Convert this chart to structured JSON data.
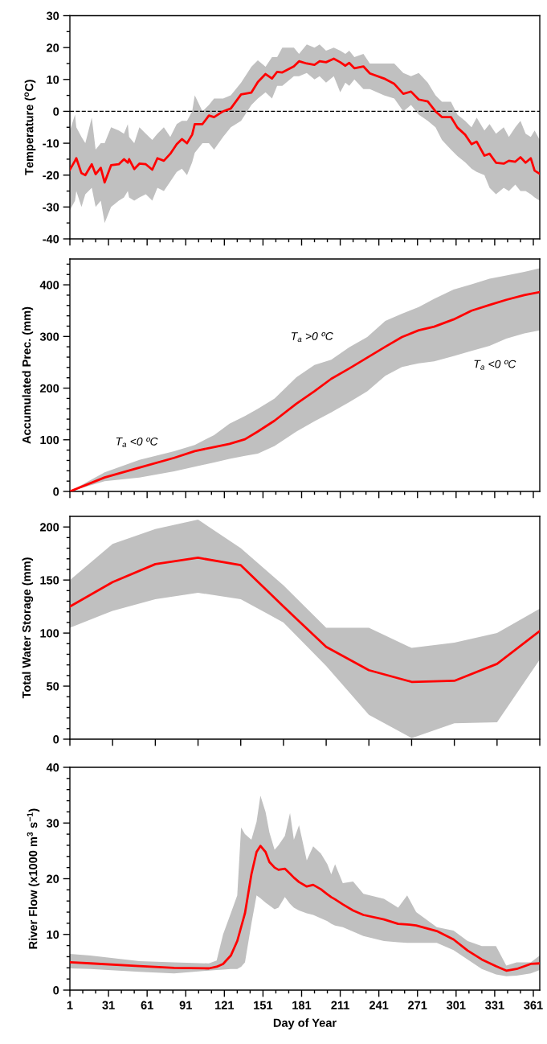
{
  "chart_data": [
    {
      "type": "line",
      "ylabel": "Temperature ($^{o}$C)",
      "xlim": [
        1,
        366
      ],
      "ylim": [
        -40,
        30
      ],
      "tick_labels": "y",
      "xticks": [
        1,
        {
          "value": 11,
          "label": null
        },
        {
          "value": 21,
          "label": null
        },
        31,
        {
          "value": 41,
          "label": null
        },
        {
          "value": 51,
          "label": null
        },
        61,
        {
          "value": 71,
          "label": null
        },
        {
          "value": 81,
          "label": null
        },
        91,
        {
          "value": 101,
          "label": null
        },
        {
          "value": 111,
          "label": null
        },
        121,
        {
          "value": 131,
          "label": null
        },
        {
          "value": 141,
          "label": null
        },
        151,
        {
          "value": 161,
          "label": null
        },
        {
          "value": 171,
          "label": null
        },
        181,
        {
          "value": 191,
          "label": null
        },
        {
          "value": 201,
          "label": null
        },
        211,
        {
          "value": 221,
          "label": null
        },
        {
          "value": 231,
          "label": null
        },
        241,
        {
          "value": 251,
          "label": null
        },
        {
          "value": 261,
          "label": null
        },
        271,
        {
          "value": 281,
          "label": null
        },
        {
          "value": 291,
          "label": null
        },
        301,
        {
          "value": 311,
          "label": null
        },
        {
          "value": 321,
          "label": null
        },
        331,
        {
          "value": 341,
          "label": null
        },
        {
          "value": 351,
          "label": null
        },
        361
      ],
      "yticks": [
        -40,
        {
          "value": -35,
          "label": null
        },
        -30,
        {
          "value": -25,
          "label": null
        },
        -20,
        {
          "value": -15,
          "label": null
        },
        -10,
        {
          "value": -5,
          "label": null
        },
        0,
        {
          "value": 5,
          "label": null
        },
        10,
        {
          "value": 15,
          "label": null
        },
        20,
        {
          "value": 25,
          "label": null
        },
        30
      ],
      "ref_lines": [
        {
          "axis": "y",
          "value": 0,
          "color": "#000000",
          "line_style": "dashed"
        }
      ],
      "series": [
        {
          "color": "#ff0000",
          "x": [
            1,
            5,
            6,
            10,
            13,
            18,
            21,
            25,
            28,
            33,
            39,
            43,
            46,
            47,
            51,
            55,
            60,
            65,
            69,
            74,
            79,
            84,
            88,
            92,
            96,
            98,
            104,
            109,
            113,
            120,
            126,
            134,
            142,
            147,
            153,
            158,
            162,
            166,
            175,
            179,
            185,
            191,
            195,
            200,
            206,
            211,
            215,
            218,
            222,
            229,
            234,
            245,
            253,
            260,
            266,
            272,
            279,
            285,
            290,
            297,
            302,
            308,
            313,
            317,
            323,
            327,
            332,
            338,
            342,
            347,
            351,
            355,
            359,
            362,
            366
          ],
          "values": [
            -18.3,
            -15.5,
            -14.7,
            -19.4,
            -20,
            -16.6,
            -19.7,
            -17.7,
            -22.3,
            -16.9,
            -16.6,
            -15,
            -16.1,
            -15,
            -18.1,
            -16.4,
            -16.6,
            -18.3,
            -14.7,
            -15.5,
            -13.3,
            -10.3,
            -8.7,
            -10,
            -7.3,
            -4,
            -4,
            -1.3,
            -1.8,
            0,
            0.9,
            5.3,
            5.9,
            9.2,
            11.7,
            10.3,
            12.4,
            12.2,
            14.1,
            15.7,
            15,
            14.6,
            15.7,
            15.4,
            16.5,
            15.4,
            14.3,
            15.2,
            13.5,
            14.1,
            11.9,
            10.3,
            8.6,
            5.5,
            6.2,
            3.7,
            3.1,
            0,
            -1.8,
            -1.8,
            -5.1,
            -7.3,
            -10.3,
            -9.5,
            -13.9,
            -13.3,
            -16.1,
            -16.4,
            -15.5,
            -15.8,
            -14.4,
            -16.1,
            -14.7,
            -18.6,
            -19.6
          ],
          "upper": [
            -6,
            -1,
            -5,
            -8,
            -10,
            -2,
            -12,
            -10,
            -10,
            -5,
            -6,
            -7,
            -4,
            -8,
            -10,
            -5,
            -7,
            -9,
            -7,
            -5,
            -8,
            -4,
            -3,
            -3,
            0,
            5,
            0,
            2,
            4,
            4,
            5,
            9,
            14,
            16,
            14,
            17,
            17,
            20,
            20,
            18,
            21,
            20,
            21,
            19,
            20,
            19,
            18,
            19,
            17,
            18,
            15,
            15,
            15,
            12,
            11,
            12,
            9,
            5,
            3,
            3,
            -1,
            -3,
            -5,
            -2,
            -6,
            -4,
            -7,
            -5,
            -8,
            -5,
            -3,
            -7,
            -8,
            -6,
            -9
          ],
          "lower": [
            -31,
            -28,
            -25,
            -30,
            -26,
            -24,
            -30,
            -28,
            -35,
            -30,
            -28,
            -27,
            -25,
            -27,
            -28,
            -27,
            -26,
            -28,
            -24,
            -25,
            -22,
            -19,
            -18,
            -20,
            -16,
            -13,
            -10,
            -10,
            -12,
            -8,
            -5,
            -3,
            2,
            4,
            6,
            4,
            8,
            8,
            11,
            11,
            12,
            10,
            11,
            9,
            11,
            6,
            9,
            8,
            10,
            7,
            7,
            5,
            4,
            0,
            2,
            -1,
            -3,
            -5,
            -9,
            -12,
            -14,
            -16,
            -18,
            -19,
            -20,
            -24,
            -26,
            -24,
            -25,
            -23,
            -25,
            -25,
            -26,
            -27,
            -28
          ]
        }
      ]
    },
    {
      "type": "line",
      "ylabel": "Accumulated Prec. (mm)",
      "xlim": [
        1,
        366
      ],
      "ylim": [
        0,
        450
      ],
      "tick_labels": "y",
      "xticks": [
        1,
        {
          "value": 11,
          "label": null
        },
        {
          "value": 21,
          "label": null
        },
        31,
        {
          "value": 41,
          "label": null
        },
        {
          "value": 51,
          "label": null
        },
        61,
        {
          "value": 71,
          "label": null
        },
        {
          "value": 81,
          "label": null
        },
        91,
        {
          "value": 101,
          "label": null
        },
        {
          "value": 111,
          "label": null
        },
        121,
        {
          "value": 131,
          "label": null
        },
        {
          "value": 141,
          "label": null
        },
        151,
        {
          "value": 161,
          "label": null
        },
        {
          "value": 171,
          "label": null
        },
        181,
        {
          "value": 191,
          "label": null
        },
        {
          "value": 201,
          "label": null
        },
        211,
        {
          "value": 221,
          "label": null
        },
        {
          "value": 231,
          "label": null
        },
        241,
        {
          "value": 251,
          "label": null
        },
        {
          "value": 261,
          "label": null
        },
        271,
        {
          "value": 281,
          "label": null
        },
        {
          "value": 291,
          "label": null
        },
        301,
        {
          "value": 311,
          "label": null
        },
        {
          "value": 321,
          "label": null
        },
        331,
        {
          "value": 341,
          "label": null
        },
        {
          "value": 351,
          "label": null
        },
        361
      ],
      "yticks": [
        0,
        {
          "value": 20,
          "label": null
        },
        {
          "value": 40,
          "label": null
        },
        {
          "value": 60,
          "label": null
        },
        {
          "value": 80,
          "label": null
        },
        100,
        {
          "value": 120,
          "label": null
        },
        {
          "value": 140,
          "label": null
        },
        {
          "value": 160,
          "label": null
        },
        {
          "value": 180,
          "label": null
        },
        200,
        {
          "value": 220,
          "label": null
        },
        {
          "value": 240,
          "label": null
        },
        {
          "value": 260,
          "label": null
        },
        {
          "value": 280,
          "label": null
        },
        300,
        {
          "value": 320,
          "label": null
        },
        {
          "value": 340,
          "label": null
        },
        {
          "value": 360,
          "label": null
        },
        {
          "value": 380,
          "label": null
        },
        400,
        {
          "value": 420,
          "label": null
        },
        {
          "value": 440,
          "label": null
        }
      ],
      "annotations": [
        "T$_{a}$ <0 ºC",
        "T$_{a}$ >0 ºC",
        "T$_{a}$ <0 ºC"
      ],
      "series": [
        {
          "color": "#ff0000",
          "x": [
            1,
            28,
            55,
            82,
            98,
            113,
            125,
            137,
            147,
            160,
            177,
            191,
            204,
            218,
            232,
            246,
            259,
            272,
            284,
            299,
            313,
            327,
            340,
            354,
            366
          ],
          "values": [
            0,
            27,
            46,
            65,
            78,
            86,
            92,
            101,
            116,
            137,
            170,
            194,
            218,
            238,
            259,
            280,
            299,
            312,
            319,
            333,
            350,
            361,
            371,
            380,
            386
          ],
          "upper": [
            0,
            37,
            61,
            78,
            90,
            109,
            131,
            146,
            160,
            180,
            221,
            245,
            255,
            279,
            299,
            330,
            344,
            357,
            373,
            391,
            401,
            412,
            418,
            425,
            432
          ],
          "lower": [
            0,
            20,
            27,
            39,
            48,
            56,
            63,
            69,
            73,
            88,
            116,
            136,
            153,
            173,
            194,
            224,
            241,
            248,
            252,
            262,
            272,
            282,
            296,
            306,
            312
          ]
        }
      ]
    },
    {
      "type": "line",
      "ylabel": "Total Water Storage (mm)",
      "ylim": [
        0,
        210
      ],
      "tick_labels": "y",
      "categories": [
        null,
        null,
        null,
        null,
        null,
        null,
        null,
        null,
        null,
        null,
        null,
        null
      ],
      "yticks": [
        0,
        {
          "value": 10,
          "label": null
        },
        {
          "value": 20,
          "label": null
        },
        {
          "value": 30,
          "label": null
        },
        {
          "value": 40,
          "label": null
        },
        50,
        {
          "value": 60,
          "label": null
        },
        {
          "value": 70,
          "label": null
        },
        {
          "value": 80,
          "label": null
        },
        {
          "value": 90,
          "label": null
        },
        100,
        {
          "value": 110,
          "label": null
        },
        {
          "value": 120,
          "label": null
        },
        {
          "value": 130,
          "label": null
        },
        {
          "value": 140,
          "label": null
        },
        150,
        {
          "value": 160,
          "label": null
        },
        {
          "value": 170,
          "label": null
        },
        {
          "value": 180,
          "label": null
        },
        {
          "value": 190,
          "label": null
        },
        200
      ],
      "series": [
        {
          "color": "#ff0000",
          "values": [
            125,
            148,
            165,
            171,
            164,
            125,
            87,
            65,
            54,
            55,
            71,
            102
          ],
          "upper": [
            150,
            184,
            198,
            207,
            180,
            145,
            105,
            105,
            86,
            91,
            100,
            123
          ],
          "lower": [
            105,
            121,
            132,
            138,
            132,
            110,
            69,
            23,
            1,
            15,
            16,
            75
          ]
        }
      ]
    },
    {
      "type": "line",
      "ylabel": "River Flow (x1000 m$^{3}$ s$^{−1}$)",
      "xlabel": "Day of Year",
      "xlim": [
        1,
        366
      ],
      "ylim": [
        0,
        40
      ],
      "xticks": [
        1,
        {
          "value": 11,
          "label": null
        },
        {
          "value": 21,
          "label": null
        },
        31,
        {
          "value": 41,
          "label": null
        },
        {
          "value": 51,
          "label": null
        },
        61,
        {
          "value": 71,
          "label": null
        },
        {
          "value": 81,
          "label": null
        },
        91,
        {
          "value": 101,
          "label": null
        },
        {
          "value": 111,
          "label": null
        },
        121,
        {
          "value": 131,
          "label": null
        },
        {
          "value": 141,
          "label": null
        },
        151,
        {
          "value": 161,
          "label": null
        },
        {
          "value": 171,
          "label": null
        },
        181,
        {
          "value": 191,
          "label": null
        },
        {
          "value": 201,
          "label": null
        },
        211,
        {
          "value": 221,
          "label": null
        },
        {
          "value": 231,
          "label": null
        },
        241,
        {
          "value": 251,
          "label": null
        },
        {
          "value": 261,
          "label": null
        },
        271,
        {
          "value": 281,
          "label": null
        },
        {
          "value": 291,
          "label": null
        },
        301,
        {
          "value": 311,
          "label": null
        },
        {
          "value": 321,
          "label": null
        },
        331,
        {
          "value": 341,
          "label": null
        },
        {
          "value": 351,
          "label": null
        },
        361
      ],
      "yticks": [
        0,
        {
          "value": 2,
          "label": null
        },
        {
          "value": 4,
          "label": null
        },
        {
          "value": 6,
          "label": null
        },
        {
          "value": 8,
          "label": null
        },
        10,
        {
          "value": 12,
          "label": null
        },
        {
          "value": 14,
          "label": null
        },
        {
          "value": 16,
          "label": null
        },
        {
          "value": 18,
          "label": null
        },
        20,
        {
          "value": 22,
          "label": null
        },
        {
          "value": 24,
          "label": null
        },
        {
          "value": 26,
          "label": null
        },
        {
          "value": 28,
          "label": null
        },
        30,
        {
          "value": 32,
          "label": null
        },
        {
          "value": 34,
          "label": null
        },
        {
          "value": 36,
          "label": null
        },
        {
          "value": 38,
          "label": null
        },
        40
      ],
      "series": [
        {
          "color": "#ff0000",
          "x": [
            1,
            17,
            55,
            82,
            109,
            115,
            120,
            126,
            131,
            134,
            137,
            142,
            146,
            149,
            153,
            156,
            160,
            163,
            168,
            172,
            175,
            179,
            185,
            190,
            196,
            201,
            204,
            207,
            213,
            221,
            229,
            245,
            256,
            263,
            270,
            286,
            299,
            310,
            321,
            332,
            340,
            348,
            359,
            366
          ],
          "values": [
            5.0,
            4.8,
            4.3,
            4.0,
            3.9,
            4.2,
            4.7,
            6.2,
            8.8,
            11.3,
            13.8,
            20.8,
            24.8,
            25.9,
            24.8,
            23,
            22,
            21.6,
            21.8,
            20.9,
            20.2,
            19.4,
            18.6,
            18.9,
            18.1,
            17.2,
            16.7,
            16.3,
            15.4,
            14.3,
            13.5,
            12.7,
            11.9,
            11.8,
            11.6,
            10.6,
            9.1,
            7.1,
            5.5,
            4.3,
            3.5,
            3.8,
            4.7,
            4.8
          ],
          "upper": [
            6.5,
            6.2,
            5.2,
            5.0,
            4.8,
            5.3,
            10,
            13.8,
            17,
            29.2,
            28,
            27,
            30.2,
            34.9,
            32,
            28.3,
            25.2,
            26,
            27.7,
            31.8,
            27,
            29.6,
            23.3,
            25.8,
            24.5,
            22.6,
            20.8,
            22.6,
            19.2,
            19.5,
            17.3,
            16.4,
            14.8,
            17,
            14,
            11.3,
            10.7,
            8.8,
            7.9,
            7.9,
            4.4,
            5.0,
            5.0,
            6.2
          ],
          "lower": [
            3.9,
            3.8,
            3.3,
            3.0,
            3.5,
            3.6,
            3.7,
            3.8,
            3.8,
            4.2,
            5.0,
            11.9,
            17,
            16.5,
            15.7,
            15.2,
            14.5,
            14.8,
            16.7,
            15.5,
            14.8,
            14.3,
            13.8,
            13.5,
            12.9,
            12.4,
            11.9,
            11.6,
            11.3,
            10.5,
            9.7,
            8.8,
            8.6,
            8.5,
            8.5,
            8.5,
            7.2,
            5.5,
            3.8,
            2.8,
            2.5,
            2.6,
            3.0,
            3.6
          ]
        }
      ]
    }
  ]
}
